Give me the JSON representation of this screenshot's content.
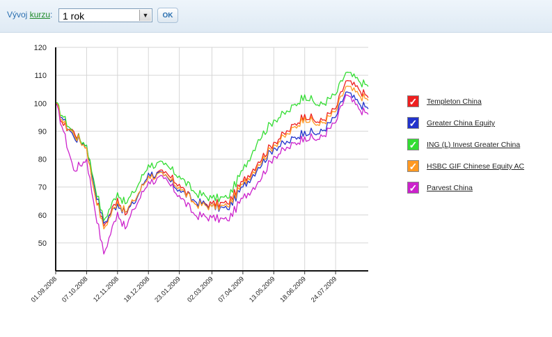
{
  "toolbar": {
    "label_prefix": "Vývoj ",
    "label_link": "kurzu",
    "label_suffix": ":",
    "period_value": "1 rok",
    "ok_label": "OK",
    "dropdown_icon": "chevron-down-icon"
  },
  "chart_data": {
    "type": "line",
    "title": "",
    "xlabel": "",
    "ylabel": "",
    "ylim": [
      40,
      120
    ],
    "yticks": [
      50,
      60,
      70,
      80,
      90,
      100,
      110,
      120
    ],
    "x_tick_labels": [
      "01.09.2008",
      "07.10.2008",
      "12.11.2008",
      "18.12.2008",
      "23.01.2009",
      "02.03.2009",
      "07.04.2009",
      "13.05.2009",
      "18.06.2009",
      "24.07.2009"
    ],
    "x_end": "31.08.2009",
    "grid": true,
    "legend_position": "right",
    "series": [
      {
        "name": "Templeton China",
        "color": "#ee2020",
        "x": [
          "2008-09-01",
          "2008-09-10",
          "2008-09-22",
          "2008-10-07",
          "2008-10-15",
          "2008-10-27",
          "2008-11-12",
          "2008-11-21",
          "2008-12-01",
          "2008-12-18",
          "2009-01-05",
          "2009-01-23",
          "2009-02-10",
          "2009-03-02",
          "2009-03-20",
          "2009-04-07",
          "2009-04-25",
          "2009-05-13",
          "2009-05-30",
          "2009-06-18",
          "2009-07-05",
          "2009-07-24",
          "2009-08-05",
          "2009-08-20",
          "2009-08-31"
        ],
        "values": [
          100,
          92,
          90,
          84,
          70,
          56,
          66,
          60,
          65,
          74,
          75,
          71,
          64,
          64,
          64,
          72,
          79,
          86,
          90,
          96,
          93,
          98,
          108,
          105,
          102
        ]
      },
      {
        "name": "Greater China Equity",
        "color": "#2233cc",
        "x": [
          "2008-09-01",
          "2008-09-10",
          "2008-09-22",
          "2008-10-07",
          "2008-10-15",
          "2008-10-27",
          "2008-11-12",
          "2008-11-21",
          "2008-12-01",
          "2008-12-18",
          "2009-01-05",
          "2009-01-23",
          "2009-02-10",
          "2009-03-02",
          "2009-03-20",
          "2009-04-07",
          "2009-04-25",
          "2009-05-13",
          "2009-05-30",
          "2009-06-18",
          "2009-07-05",
          "2009-07-24",
          "2009-08-05",
          "2009-08-20",
          "2009-08-31"
        ],
        "values": [
          100,
          94,
          88,
          85,
          72,
          57,
          64,
          61,
          64,
          75,
          74,
          69,
          65,
          63,
          62,
          70,
          77,
          84,
          86,
          90,
          89,
          95,
          104,
          100,
          98
        ]
      },
      {
        "name": "ING (L) Invest Greater China",
        "color": "#33dd33",
        "x": [
          "2008-09-01",
          "2008-09-10",
          "2008-09-22",
          "2008-10-07",
          "2008-10-15",
          "2008-10-27",
          "2008-11-12",
          "2008-11-21",
          "2008-12-01",
          "2008-12-18",
          "2009-01-05",
          "2009-01-23",
          "2009-02-10",
          "2009-03-02",
          "2009-03-20",
          "2009-04-07",
          "2009-04-25",
          "2009-05-13",
          "2009-05-30",
          "2009-06-18",
          "2009-07-05",
          "2009-07-24",
          "2009-08-05",
          "2009-08-20",
          "2009-08-31"
        ],
        "values": [
          100,
          95,
          89,
          85,
          73,
          58,
          68,
          64,
          68,
          78,
          78,
          74,
          68,
          66,
          66,
          76,
          87,
          94,
          97,
          103,
          99,
          103,
          111,
          108,
          106
        ]
      },
      {
        "name": "HSBC GIF Chinese Equity AC",
        "color": "#ff9922",
        "x": [
          "2008-09-01",
          "2008-09-10",
          "2008-09-22",
          "2008-10-07",
          "2008-10-15",
          "2008-10-27",
          "2008-11-12",
          "2008-11-21",
          "2008-12-01",
          "2008-12-18",
          "2009-01-05",
          "2009-01-23",
          "2009-02-10",
          "2009-03-02",
          "2009-03-20",
          "2009-04-07",
          "2009-04-25",
          "2009-05-13",
          "2009-05-30",
          "2009-06-18",
          "2009-07-05",
          "2009-07-24",
          "2009-08-05",
          "2009-08-20",
          "2009-08-31"
        ],
        "values": [
          100,
          93,
          89,
          84,
          70,
          55,
          65,
          61,
          65,
          74,
          74,
          70,
          64,
          63,
          63,
          71,
          78,
          85,
          89,
          95,
          92,
          97,
          106,
          103,
          101
        ]
      },
      {
        "name": "Parvest China",
        "color": "#cc22cc",
        "x": [
          "2008-09-01",
          "2008-09-10",
          "2008-09-22",
          "2008-10-07",
          "2008-10-15",
          "2008-10-27",
          "2008-11-12",
          "2008-11-21",
          "2008-12-01",
          "2008-12-18",
          "2009-01-05",
          "2009-01-23",
          "2009-02-10",
          "2009-03-02",
          "2009-03-20",
          "2009-04-07",
          "2009-04-25",
          "2009-05-13",
          "2009-05-30",
          "2009-06-18",
          "2009-07-05",
          "2009-07-24",
          "2009-08-05",
          "2009-08-20",
          "2009-08-31"
        ],
        "values": [
          100,
          90,
          76,
          80,
          65,
          46,
          61,
          55,
          62,
          72,
          73,
          67,
          60,
          59,
          58,
          66,
          72,
          81,
          84,
          88,
          87,
          93,
          103,
          98,
          96
        ]
      }
    ]
  }
}
